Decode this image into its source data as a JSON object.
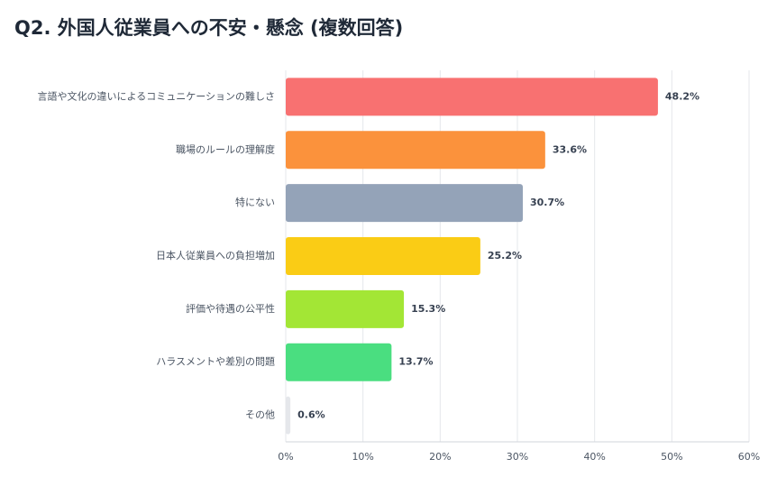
{
  "chart_data": {
    "type": "bar",
    "orientation": "horizontal",
    "title": "Q2. 外国人従業員への不安・懸念 (複数回答)",
    "categories": [
      "言語や文化の違いによるコミュニケーションの難しさ",
      "職場のルールの理解度",
      "特にない",
      "日本人従業員への負担増加",
      "評価や待遇の公平性",
      "ハラスメントや差別の問題",
      "その他"
    ],
    "values": [
      48.2,
      33.6,
      30.7,
      25.2,
      15.3,
      13.7,
      0.6
    ],
    "value_labels": [
      "48.2%",
      "33.6%",
      "30.7%",
      "25.2%",
      "15.3%",
      "13.7%",
      "0.6%"
    ],
    "colors": [
      "#f87171",
      "#fb923c",
      "#94a3b8",
      "#facc15",
      "#a3e635",
      "#4ade80",
      "#e5e7eb"
    ],
    "xlim": [
      0,
      60
    ],
    "xticks": [
      {
        "value": 0,
        "label": "0%"
      },
      {
        "value": 10,
        "label": "10%"
      },
      {
        "value": 20,
        "label": "20%"
      },
      {
        "value": 30,
        "label": "30%"
      },
      {
        "value": 40,
        "label": "40%"
      },
      {
        "value": 50,
        "label": "50%"
      },
      {
        "value": 60,
        "label": "60%"
      }
    ],
    "grid": true
  }
}
